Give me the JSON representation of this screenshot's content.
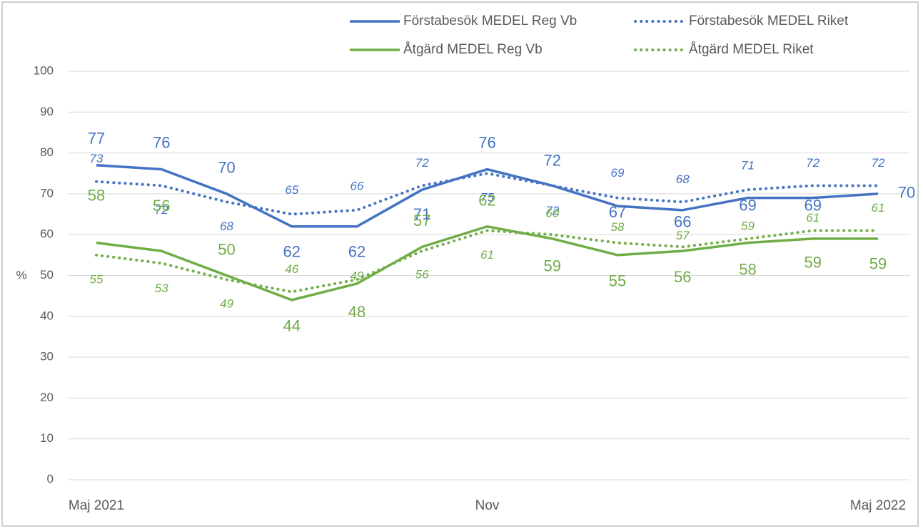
{
  "chart_data": {
    "type": "line",
    "ylabel": "%",
    "categories": [
      "Maj 2021",
      null,
      null,
      null,
      null,
      null,
      "Nov",
      null,
      null,
      null,
      null,
      null,
      "Maj 2022"
    ],
    "series": [
      {
        "name": "Förstabesök MEDEL Reg Vb",
        "color": "#4472c4",
        "dash": "solid",
        "values": [
          77,
          76,
          70,
          62,
          62,
          71,
          76,
          72,
          67,
          66,
          69,
          69,
          70
        ]
      },
      {
        "name": "Förstabesök MEDEL Riket",
        "color": "#4472c4",
        "dash": "dotted",
        "values": [
          73,
          72,
          68,
          65,
          66,
          72,
          75,
          72,
          69,
          68,
          71,
          72,
          72
        ]
      },
      {
        "name": "Åtgärd MEDEL Reg Vb",
        "color": "#70ad47",
        "dash": "solid",
        "values": [
          58,
          56,
          50,
          44,
          48,
          57,
          62,
          59,
          55,
          56,
          58,
          59,
          59
        ]
      },
      {
        "name": "Åtgärd MEDEL Riket",
        "color": "#70ad47",
        "dash": "dotted",
        "values": [
          55,
          53,
          49,
          46,
          49,
          56,
          61,
          60,
          58,
          57,
          59,
          61,
          61
        ]
      }
    ],
    "ylim": [
      0,
      100
    ],
    "yticks": [
      0,
      10,
      20,
      30,
      40,
      50,
      60,
      70,
      80,
      90,
      100
    ],
    "grid": true,
    "legend": "top-right"
  }
}
